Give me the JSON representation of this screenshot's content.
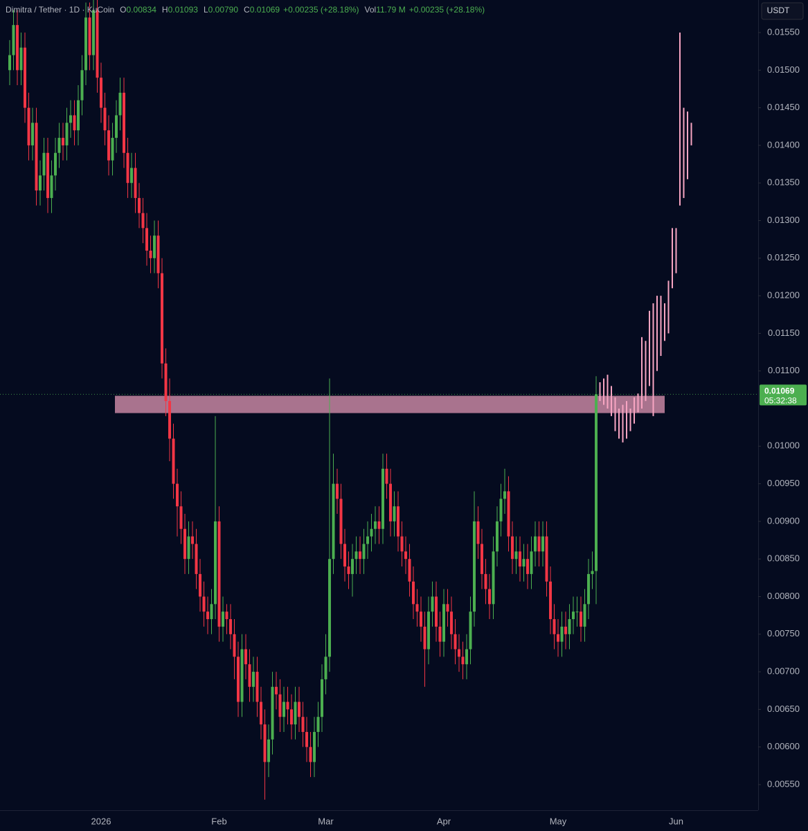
{
  "chart_data": {
    "type": "candlestick",
    "title": "Dimitra / Tether · 1D · KuCoin",
    "ohlc_legend": [
      {
        "label": "O",
        "value": "0.00834"
      },
      {
        "label": "H",
        "value": "0.01093"
      },
      {
        "label": "L",
        "value": "0.00790"
      },
      {
        "label": "C",
        "value": "0.01069"
      }
    ],
    "change": "+0.00235 (+28.18%)",
    "volume": {
      "label": "Vol",
      "value": "11.79 M"
    },
    "volume_change": "+0.00235 (+28.18%)",
    "currency": "USDT",
    "last_price": {
      "value": 0.01069,
      "label": "0.01069",
      "countdown": "05:32:38"
    },
    "up_color": "#4caf50",
    "down_color": "#f23645",
    "projection_color": "#f8a5c2",
    "zone": {
      "low": 0.01044,
      "high": 0.01067,
      "color": "#f8a5c2"
    },
    "grid": false,
    "ylim": [
      0.005159,
      0.015933
    ],
    "yticks": [
      {
        "value": 0.0155,
        "label": "0.01550"
      },
      {
        "value": 0.015,
        "label": "0.01500"
      },
      {
        "value": 0.0145,
        "label": "0.01450"
      },
      {
        "value": 0.014,
        "label": "0.01400"
      },
      {
        "value": 0.0135,
        "label": "0.01350"
      },
      {
        "value": 0.013,
        "label": "0.01300"
      },
      {
        "value": 0.0125,
        "label": "0.01250"
      },
      {
        "value": 0.012,
        "label": "0.01200"
      },
      {
        "value": 0.0115,
        "label": "0.01150"
      },
      {
        "value": 0.011,
        "label": "0.01100"
      },
      {
        "value": 0.01,
        "label": "0.01000"
      },
      {
        "value": 0.0095,
        "label": "0.00950"
      },
      {
        "value": 0.009,
        "label": "0.00900"
      },
      {
        "value": 0.0085,
        "label": "0.00850"
      },
      {
        "value": 0.008,
        "label": "0.00800"
      },
      {
        "value": 0.0075,
        "label": "0.00750"
      },
      {
        "value": 0.007,
        "label": "0.00700"
      },
      {
        "value": 0.0065,
        "label": "0.00650"
      },
      {
        "value": 0.006,
        "label": "0.00600"
      },
      {
        "value": 0.0055,
        "label": "0.00550"
      }
    ],
    "categories": [
      null,
      null,
      null,
      null,
      null,
      null,
      null,
      null,
      null,
      null,
      null,
      null,
      null,
      null,
      null,
      null,
      null,
      null,
      null,
      null,
      null,
      null,
      null,
      null,
      "2026",
      null,
      null,
      null,
      null,
      null,
      null,
      null,
      null,
      null,
      null,
      null,
      null,
      null,
      null,
      null,
      null,
      null,
      null,
      null,
      null,
      null,
      null,
      null,
      null,
      null,
      null,
      null,
      null,
      null,
      null,
      "Feb",
      null,
      null,
      null,
      null,
      null,
      null,
      null,
      null,
      null,
      null,
      null,
      null,
      null,
      null,
      null,
      null,
      null,
      null,
      null,
      null,
      null,
      null,
      null,
      null,
      null,
      null,
      null,
      "Mar",
      null,
      null,
      null,
      null,
      null,
      null,
      null,
      null,
      null,
      null,
      null,
      null,
      null,
      null,
      null,
      null,
      null,
      null,
      null,
      null,
      null,
      null,
      null,
      null,
      null,
      null,
      null,
      null,
      null,
      null,
      "Apr",
      null,
      null,
      null,
      null,
      null,
      null,
      null,
      null,
      null,
      null,
      null,
      null,
      null,
      null,
      null,
      null,
      null,
      null,
      null,
      null,
      null,
      null,
      null,
      null,
      null,
      null,
      null,
      null,
      null,
      "May",
      null,
      null,
      null,
      null,
      null,
      null,
      null,
      null,
      null,
      null,
      null,
      null,
      null,
      null,
      null,
      null,
      null,
      null,
      null,
      null,
      null,
      null,
      null,
      null,
      null,
      null,
      null,
      null,
      null,
      null,
      "Jun",
      null,
      null,
      null,
      null
    ],
    "open": [
      0.015,
      0.0152,
      0.0156,
      0.015,
      0.0153,
      0.0145,
      0.014,
      0.0143,
      0.0134,
      0.0136,
      0.0139,
      0.0133,
      0.0136,
      0.0139,
      0.0141,
      0.014,
      0.0143,
      0.0144,
      0.0142,
      0.0146,
      0.015,
      0.0157,
      0.0152,
      0.0158,
      0.0149,
      0.0145,
      0.0142,
      0.0138,
      0.0141,
      0.0144,
      0.0147,
      0.0139,
      0.0135,
      0.0137,
      0.0133,
      0.0131,
      0.0129,
      0.0126,
      0.0125,
      0.0128,
      0.0123,
      0.0111,
      0.0106,
      0.0101,
      0.0095,
      0.0092,
      0.0089,
      0.0085,
      0.0088,
      0.0087,
      0.0083,
      0.008,
      0.0078,
      0.0077,
      0.0079,
      0.009,
      0.0076,
      0.0078,
      0.0077,
      0.0075,
      0.0072,
      0.0066,
      0.0073,
      0.0071,
      0.0068,
      0.007,
      0.0066,
      0.0063,
      0.0058,
      0.0061,
      0.0068,
      0.0067,
      0.0064,
      0.0066,
      0.0065,
      0.0063,
      0.0066,
      0.0064,
      0.0062,
      0.006,
      0.0058,
      0.0062,
      0.0064,
      0.0069,
      0.0072,
      0.0085,
      0.0095,
      0.0093,
      0.0087,
      0.0084,
      0.0083,
      0.0085,
      0.0086,
      0.0085,
      0.0087,
      0.0088,
      0.0089,
      0.009,
      0.0089,
      0.0097,
      0.0095,
      0.009,
      0.0092,
      0.0088,
      0.0086,
      0.0085,
      0.0082,
      0.0079,
      0.0078,
      0.0076,
      0.0073,
      0.0078,
      0.008,
      0.0076,
      0.0074,
      0.0079,
      0.0078,
      0.0075,
      0.0073,
      0.0072,
      0.0071,
      0.0073,
      0.0078,
      0.009,
      0.0087,
      0.0083,
      0.0081,
      0.0079,
      0.0086,
      0.009,
      0.0093,
      0.0094,
      0.0088,
      0.0085,
      0.0086,
      0.0084,
      0.0085,
      0.0083,
      0.0086,
      0.0088,
      0.0086,
      0.0088,
      0.0082,
      0.0077,
      0.0075,
      0.0074,
      0.0076,
      0.0075,
      0.0077,
      0.0078,
      0.0078,
      0.0076,
      0.0079,
      0.0083,
      0.00834,
      null,
      null,
      null,
      null,
      null,
      null,
      null,
      null,
      null,
      null,
      null,
      null,
      null,
      null,
      null,
      null,
      null,
      null,
      null,
      null,
      null,
      null,
      null,
      null,
      null
    ],
    "close": [
      0.0152,
      0.0156,
      0.015,
      0.0153,
      0.0145,
      0.014,
      0.0143,
      0.0134,
      0.0136,
      0.0139,
      0.0133,
      0.0136,
      0.0139,
      0.0141,
      0.014,
      0.0143,
      0.0144,
      0.0142,
      0.0146,
      0.015,
      0.0157,
      0.0152,
      0.0158,
      0.0149,
      0.0145,
      0.0142,
      0.0138,
      0.0141,
      0.0144,
      0.0147,
      0.0139,
      0.0135,
      0.0137,
      0.0133,
      0.0131,
      0.0129,
      0.0126,
      0.0125,
      0.0128,
      0.0123,
      0.0111,
      0.0106,
      0.0101,
      0.0095,
      0.0092,
      0.0089,
      0.0085,
      0.0088,
      0.0087,
      0.0083,
      0.008,
      0.0078,
      0.0077,
      0.0079,
      0.009,
      0.0076,
      0.0078,
      0.0077,
      0.0075,
      0.0072,
      0.0066,
      0.0073,
      0.0071,
      0.0068,
      0.007,
      0.0066,
      0.0063,
      0.0058,
      0.0061,
      0.0068,
      0.0067,
      0.0064,
      0.0066,
      0.0065,
      0.0063,
      0.0066,
      0.0064,
      0.0062,
      0.006,
      0.0058,
      0.0062,
      0.0064,
      0.0069,
      0.0072,
      0.0085,
      0.0095,
      0.0093,
      0.0087,
      0.0084,
      0.0083,
      0.0085,
      0.0086,
      0.0085,
      0.0087,
      0.0088,
      0.0089,
      0.009,
      0.0089,
      0.0097,
      0.0095,
      0.009,
      0.0092,
      0.0088,
      0.0086,
      0.0085,
      0.0082,
      0.0079,
      0.0078,
      0.0076,
      0.0073,
      0.0078,
      0.008,
      0.0076,
      0.0074,
      0.0079,
      0.0078,
      0.0075,
      0.0073,
      0.0072,
      0.0071,
      0.0073,
      0.0078,
      0.009,
      0.0087,
      0.0083,
      0.0081,
      0.0079,
      0.0086,
      0.009,
      0.0093,
      0.0094,
      0.0088,
      0.0085,
      0.0086,
      0.0084,
      0.0085,
      0.0083,
      0.0086,
      0.0088,
      0.0086,
      0.0088,
      0.0082,
      0.0077,
      0.0075,
      0.0074,
      0.0076,
      0.0075,
      0.0077,
      0.0078,
      0.0078,
      0.0076,
      0.0079,
      0.0083,
      0.00834,
      0.01069,
      null,
      null,
      null,
      null,
      null,
      null,
      null,
      null,
      null,
      null,
      null,
      null,
      null,
      null,
      null,
      null,
      null,
      null,
      null,
      null,
      null,
      null,
      null,
      null,
      null
    ],
    "high": [
      0.0154,
      0.0158,
      0.0158,
      0.0155,
      0.0155,
      0.0147,
      0.0145,
      0.0145,
      0.0138,
      0.0141,
      0.0141,
      0.0138,
      0.0141,
      0.0143,
      0.0143,
      0.0145,
      0.0146,
      0.0146,
      0.0148,
      0.0152,
      0.0159,
      0.0159,
      0.016,
      0.016,
      0.0151,
      0.0147,
      0.0144,
      0.0143,
      0.0146,
      0.0149,
      0.0149,
      0.0141,
      0.0139,
      0.0139,
      0.0135,
      0.0133,
      0.0131,
      0.0128,
      0.013,
      0.013,
      0.0125,
      0.0113,
      0.0109,
      0.0103,
      0.0097,
      0.0094,
      0.0091,
      0.009,
      0.009,
      0.0089,
      0.0085,
      0.0082,
      0.008,
      0.0081,
      0.0104,
      0.0092,
      0.008,
      0.0079,
      0.0079,
      0.0077,
      0.0074,
      0.0075,
      0.0075,
      0.0073,
      0.0072,
      0.0072,
      0.0068,
      0.0065,
      0.0063,
      0.007,
      0.007,
      0.0069,
      0.0068,
      0.0068,
      0.0067,
      0.0068,
      0.0068,
      0.0066,
      0.0064,
      0.0062,
      0.0064,
      0.0066,
      0.0071,
      0.0075,
      0.0109,
      0.0099,
      0.0097,
      0.0095,
      0.0089,
      0.0086,
      0.0087,
      0.0088,
      0.0088,
      0.0089,
      0.009,
      0.0091,
      0.0092,
      0.0092,
      0.0099,
      0.0099,
      0.0097,
      0.0094,
      0.0094,
      0.009,
      0.0088,
      0.0087,
      0.0084,
      0.0081,
      0.008,
      0.0078,
      0.008,
      0.0082,
      0.0082,
      0.0078,
      0.0081,
      0.0081,
      0.008,
      0.0077,
      0.0075,
      0.0074,
      0.0075,
      0.008,
      0.0094,
      0.0092,
      0.0089,
      0.0085,
      0.0083,
      0.0088,
      0.0092,
      0.0095,
      0.0097,
      0.0096,
      0.009,
      0.0088,
      0.0088,
      0.0087,
      0.0087,
      0.0088,
      0.009,
      0.009,
      0.009,
      0.009,
      0.0084,
      0.0079,
      0.0077,
      0.0078,
      0.0078,
      0.0079,
      0.008,
      0.008,
      0.008,
      0.0081,
      0.0085,
      0.0086,
      0.01093,
      0.01085,
      0.0109,
      0.01095,
      0.0108,
      0.01065,
      0.0105,
      0.01055,
      0.0106,
      0.0105,
      0.01065,
      0.0107,
      0.01145,
      0.0114,
      0.0118,
      0.0119,
      0.012,
      0.012,
      0.0119,
      0.0122,
      0.0129,
      0.0129,
      0.0155,
      0.0145,
      0.01445,
      0.0143
    ],
    "low": [
      0.0148,
      0.015,
      0.0148,
      0.0148,
      0.0143,
      0.0138,
      0.0138,
      0.0132,
      0.0132,
      0.0134,
      0.0131,
      0.0131,
      0.0134,
      0.0137,
      0.0138,
      0.0138,
      0.0141,
      0.014,
      0.014,
      0.0144,
      0.0148,
      0.015,
      0.015,
      0.0147,
      0.0143,
      0.014,
      0.0136,
      0.0136,
      0.0139,
      0.0142,
      0.0137,
      0.0133,
      0.0133,
      0.0131,
      0.0129,
      0.0127,
      0.0124,
      0.0123,
      0.0123,
      0.0121,
      0.0109,
      0.0104,
      0.0098,
      0.0093,
      0.0088,
      0.0087,
      0.0083,
      0.0083,
      0.0085,
      0.0081,
      0.0078,
      0.0076,
      0.0075,
      0.0075,
      0.0077,
      0.0074,
      0.0074,
      0.0075,
      0.0073,
      0.0069,
      0.0064,
      0.0064,
      0.0069,
      0.0066,
      0.0066,
      0.0064,
      0.0061,
      0.0053,
      0.0056,
      0.0059,
      0.0065,
      0.0062,
      0.0062,
      0.0063,
      0.0061,
      0.0061,
      0.0062,
      0.006,
      0.0058,
      0.0056,
      0.0056,
      0.006,
      0.0062,
      0.0067,
      0.007,
      0.0083,
      0.0091,
      0.0085,
      0.0082,
      0.0081,
      0.008,
      0.0083,
      0.0083,
      0.0083,
      0.0085,
      0.0086,
      0.0087,
      0.0087,
      0.0087,
      0.0093,
      0.0088,
      0.0088,
      0.0086,
      0.0084,
      0.0083,
      0.008,
      0.0077,
      0.0076,
      0.0074,
      0.0068,
      0.0071,
      0.0076,
      0.0074,
      0.0072,
      0.0072,
      0.0076,
      0.0073,
      0.0071,
      0.007,
      0.0069,
      0.0069,
      0.0071,
      0.0076,
      0.0085,
      0.0081,
      0.0079,
      0.0077,
      0.0077,
      0.0084,
      0.0088,
      0.0091,
      0.0086,
      0.0083,
      0.0083,
      0.0082,
      0.0082,
      0.0081,
      0.0081,
      0.0084,
      0.0084,
      0.0084,
      0.008,
      0.0075,
      0.0073,
      0.0072,
      0.0072,
      0.0073,
      0.0073,
      0.0075,
      0.0076,
      0.0074,
      0.0074,
      0.0077,
      0.0081,
      0.0079,
      0.0106,
      0.01055,
      0.0105,
      0.0104,
      0.0102,
      0.0101,
      0.01005,
      0.0101,
      0.0102,
      0.0103,
      0.01045,
      0.0105,
      0.0106,
      0.0108,
      0.0104,
      0.011,
      0.0112,
      0.0114,
      0.0115,
      0.0121,
      0.0123,
      0.0132,
      0.0133,
      0.01355,
      0.014
    ]
  }
}
